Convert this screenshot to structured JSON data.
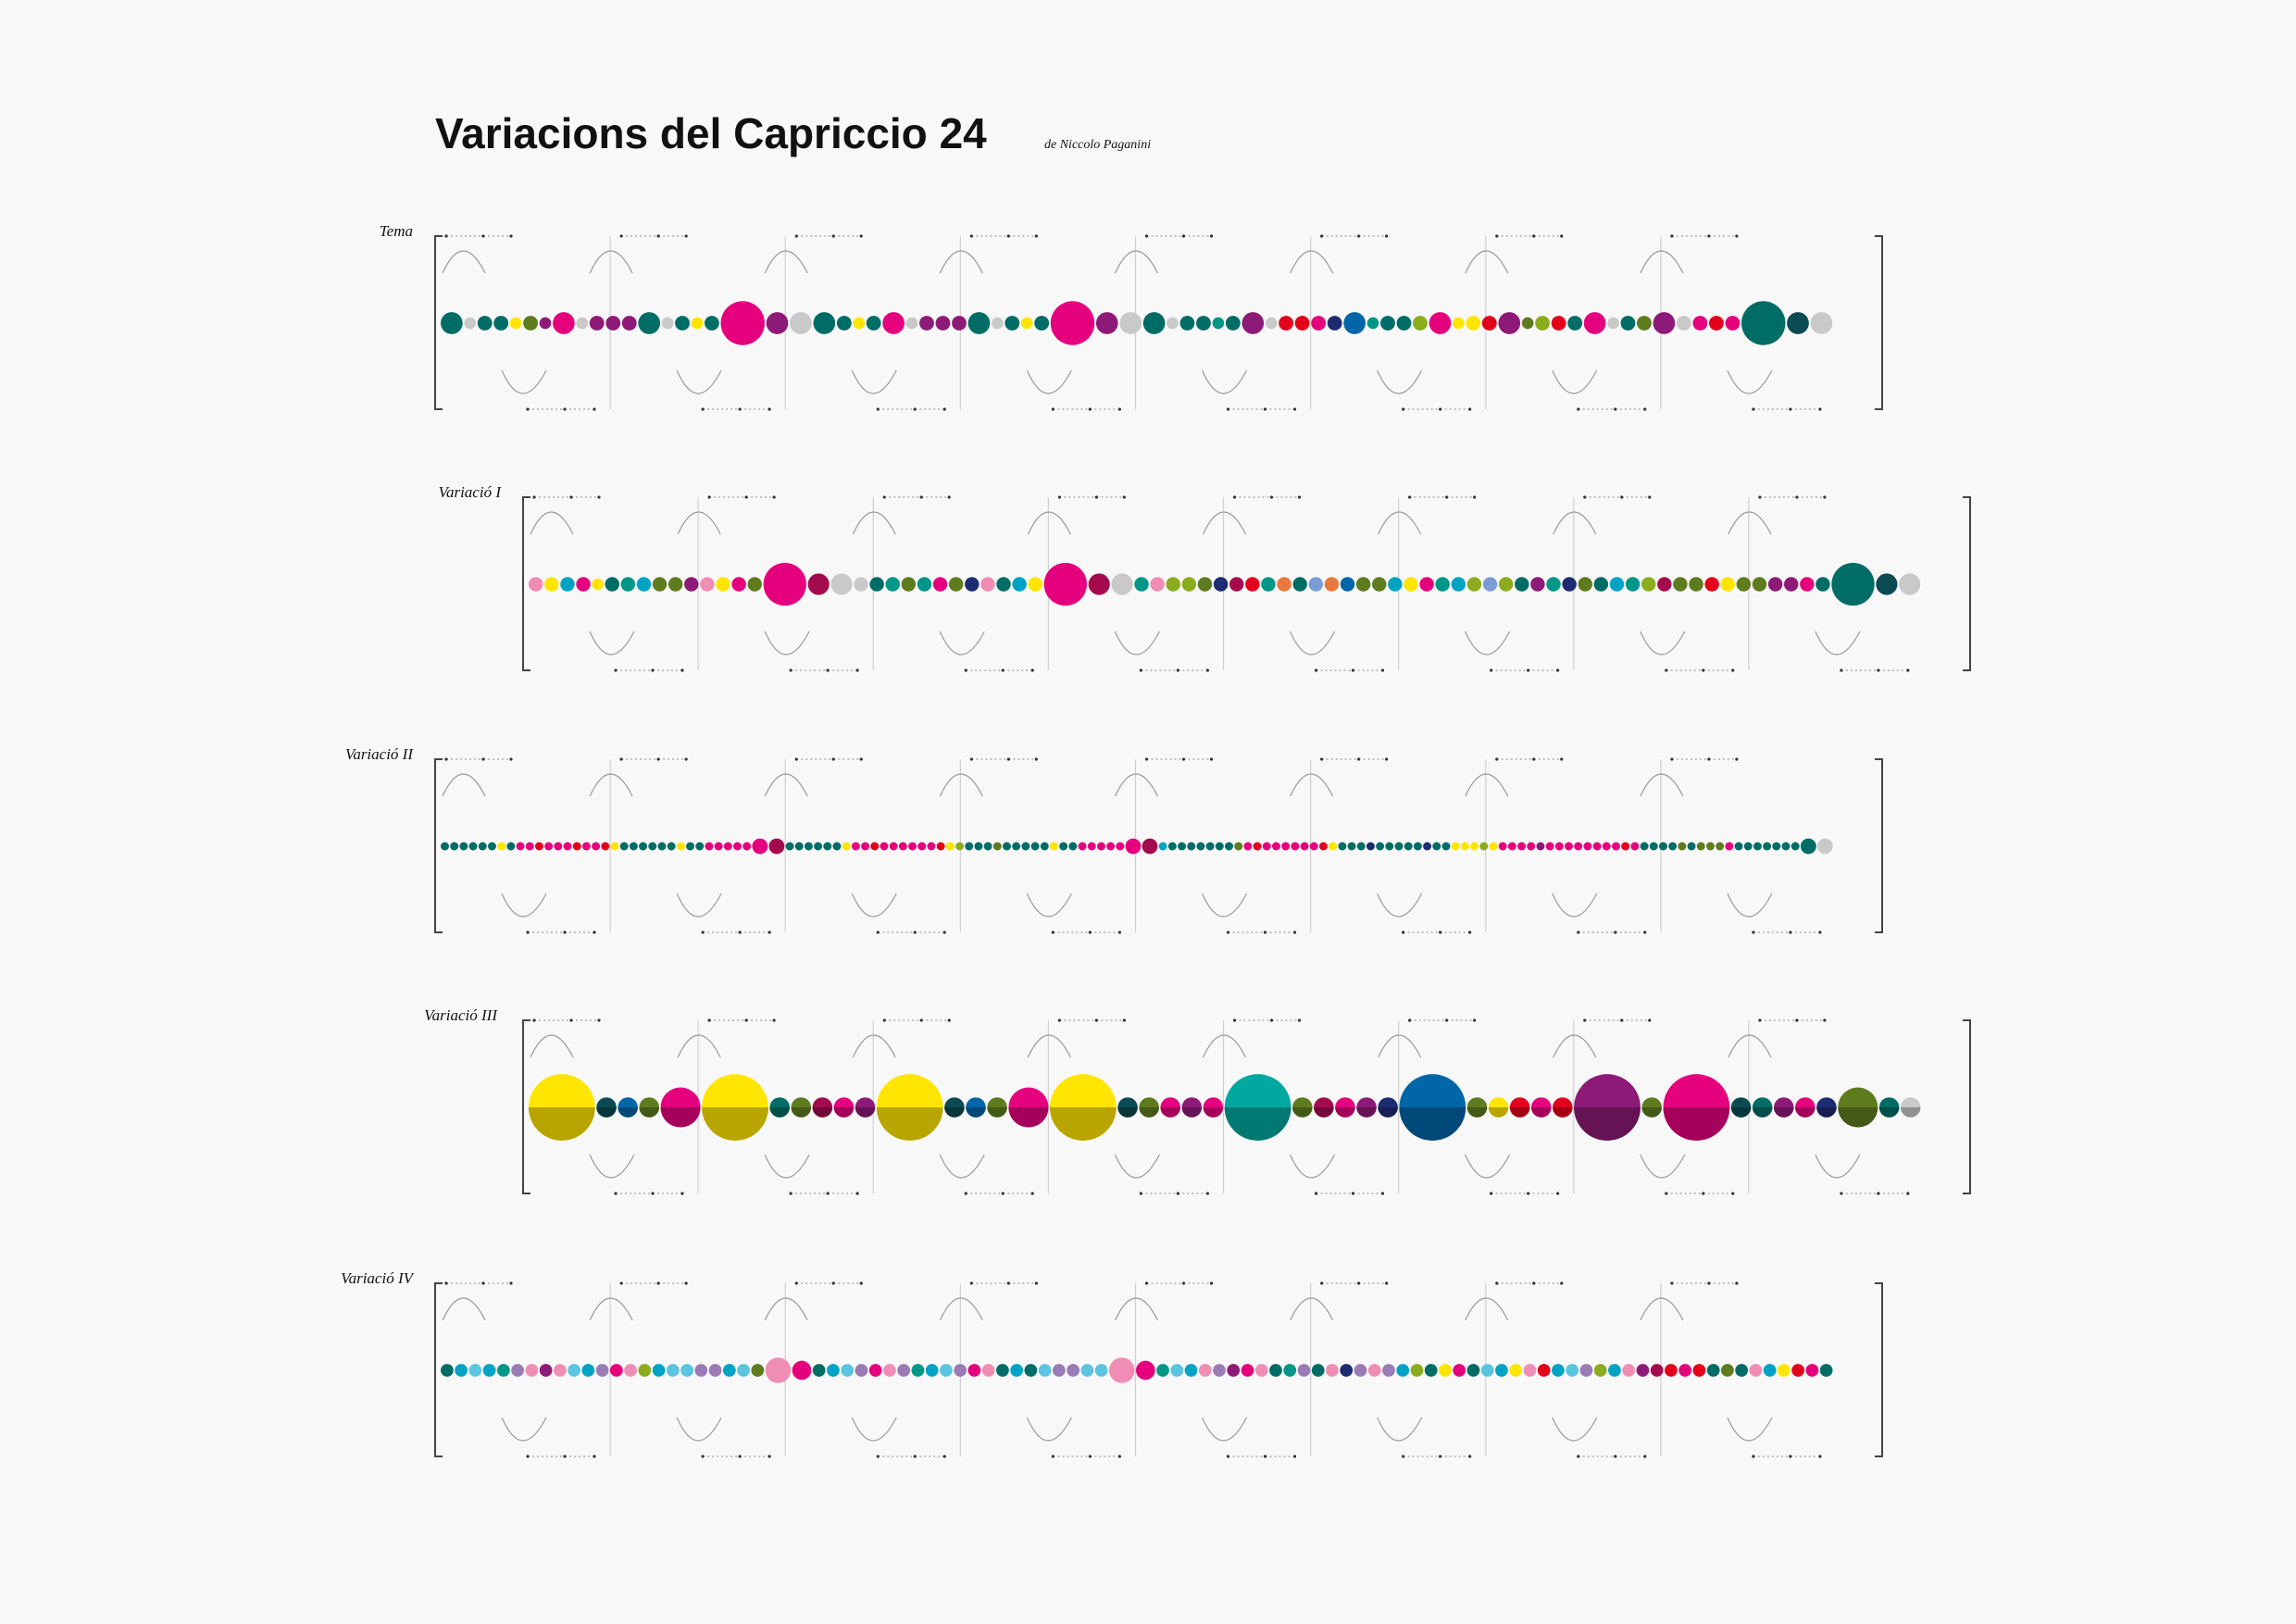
{
  "title": "Variacions del Capriccio 24",
  "subtitle": "de Niccolo Paganini",
  "colors": {
    "M": "#e5007e",
    "T": "#006c66",
    "D": "#0b4a52",
    "P": "#8e1a78",
    "R": "#a40b4c",
    "Y": "#ffe500",
    "G": "#c9c9c9",
    "O": "#5e7b1e",
    "L": "#8bac1c",
    "B": "#0066a8",
    "C": "#00a3c4",
    "K": "#f08db4",
    "E": "#e3001b",
    "N": "#1d2b73",
    "F": "#009688",
    "S": "#5bc4e0",
    "V": "#9a7bb5",
    "A": "#e8783c",
    "H": "#7a9cd6",
    "Q": "#00a8a0"
  },
  "rows": [
    {
      "label": "Tema",
      "beads": "T:3 G T:2 T:2 Y O:2 P M:3 G P:2 P:2 P:2 T:3 G T:2 Y T:2 M:6 P:3 G:3 T:3 T:2 Y T:2 M:3 G P:2 P:2 P:2 T:3 G T:2 Y T:2 M:6 P:3 G:3 T:3 G T:2 T:2 F T:2 P:3 G E:2 E:2 M:2 N:2 B:3 F T:2 T:2 L:2 M:3 Y Y:2 E:2 P:3 O L:2 E:2 T:2 M:3 G T:2 O:2 P:3 G:2 M:2 E:2 M:2 T:6 D:3 G:3"
    },
    {
      "label": "Variació I",
      "beads": "K:2 Y:2 C:2 M:2 Y T:2 F:2 C:2 O:2 O:2 P:2 K:2 Y:2 M:2 O:2 M:6 R:3 G:3 G:2 T:2 F:2 O:2 F:2 M:2 O:2 N:2 K:2 T:2 C:2 Y:2 M:6 R:3 G:3 F:2 K:2 L:2 L:2 O:2 N:2 R:2 E:2 F:2 A:2 T:2 H:2 A:2 B:2 O:2 O:2 C:2 Y:2 M:2 F:2 C:2 L:2 H:2 L:2 T:2 P:2 F:2 N:2 O:2 T:2 C:2 F:2 L:2 R:2 O:2 O:2 E:2 Y:2 O:2 O:2 P:2 P:2 M:2 T:2 T:6 D:3 G:3"
    },
    {
      "label": "Variació II",
      "beads": "T T T T T T Y T M M E M M M E M M E Y T T T T T T Y T T M M M M M M:3 R:3 T T T T T T Y M M E M M M M M M E Y L T T T O T T T T T Y T T M M M M M M:3 R:3 C T T T T T T T O M E M M M M M M E Y T T T N T T T T T N T T Y Y Y L Y M M M M P M M M M M M M M E M T T T T O T O O O M T T T T T T T T:3 G:3"
    },
    {
      "label": "Variació III",
      "beads": "Y:10 D:3 B:3 O:3 M:6 Y:10 T:3 O:3 R:3 M:3 P:3 Y:10 D:3 B:3 O:3 M:6 Y:10 D:3 O:3 M:3 P:3 M:3 Q:10 O:3 R:3 M:3 P:3 N:3 B:10 O:3 Y:3 E:3 M:3 E:3 P:10 O:3 M:10 D:3 T:3 P:3 M:3 N:3 O:6 T:3 G:3"
    },
    {
      "label": "Variació IV",
      "beads": "T:2 C:2 S:2 C:2 F:2 V:2 K:2 P:2 K:2 S:2 C:2 V:2 M:2 K:2 L:2 C:2 S:2 S:2 V:2 V:2 C:2 S:2 O:2 K:4 M:3 T:2 C:2 S:2 V:2 M:2 K:2 V:2 F:2 C:2 S:2 V:2 M:2 K:2 T:2 C:2 T:2 S:2 V:2 V:2 S:2 S:2 K:4 M:3 F:2 S:2 C:2 K:2 V:2 P:2 M:2 K:2 T:2 F:2 V:2 T:2 K:2 N:2 V:2 K:2 V:2 C:2 L:2 T:2 Y:2 M:2 T:2 S:2 C:2 Y:2 K:2 E:2 C:2 S:2 V:2 L:2 C:2 K:2 P:2 R:2 E:2 M:2 E:2 T:2 O:2 T:2 K:2 C:2 Y:2 E:2 M:2 T:2"
    }
  ]
}
